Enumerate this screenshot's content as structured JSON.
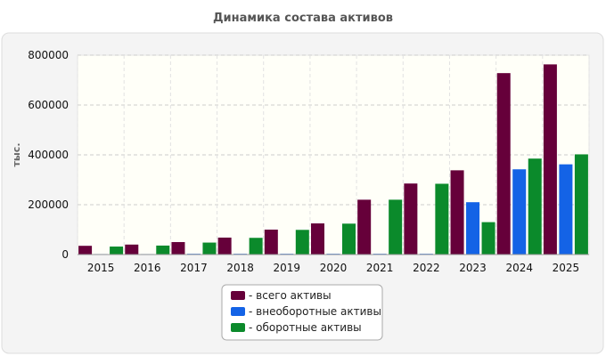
{
  "title": "Динамика состава активов",
  "chart_data": {
    "type": "bar",
    "title": "Динамика состава активов",
    "ylabel": "тыс.",
    "xlabel": "",
    "ylim": [
      0,
      800000
    ],
    "yticks": [
      "800000",
      "600000",
      "400000",
      "200000",
      "0"
    ],
    "categories": [
      "2015",
      "2016",
      "2017",
      "2018",
      "2019",
      "2020",
      "2021",
      "2022",
      "2023",
      "2024",
      "2025"
    ],
    "series": [
      {
        "name": "- всего активы",
        "color": "#66003a",
        "values": [
          35000,
          40000,
          50000,
          68000,
          100000,
          125000,
          220000,
          285000,
          338000,
          728000,
          763000
        ]
      },
      {
        "name": "- внеоборотные активы",
        "color": "#1463e6",
        "values": [
          2000,
          2000,
          3000,
          3000,
          3000,
          3000,
          3000,
          3000,
          210000,
          342000,
          362000
        ]
      },
      {
        "name": "- оборотные активы",
        "color": "#0b8a2b",
        "values": [
          32000,
          36000,
          48000,
          67000,
          99000,
          124000,
          220000,
          284000,
          130000,
          385000,
          402000
        ]
      }
    ],
    "grid": true,
    "legend_position": "bottom-center"
  },
  "colors": {
    "panel_bg": "#f4f4f4",
    "plot_bg": "#fffff8",
    "grid": "#cccccc"
  }
}
